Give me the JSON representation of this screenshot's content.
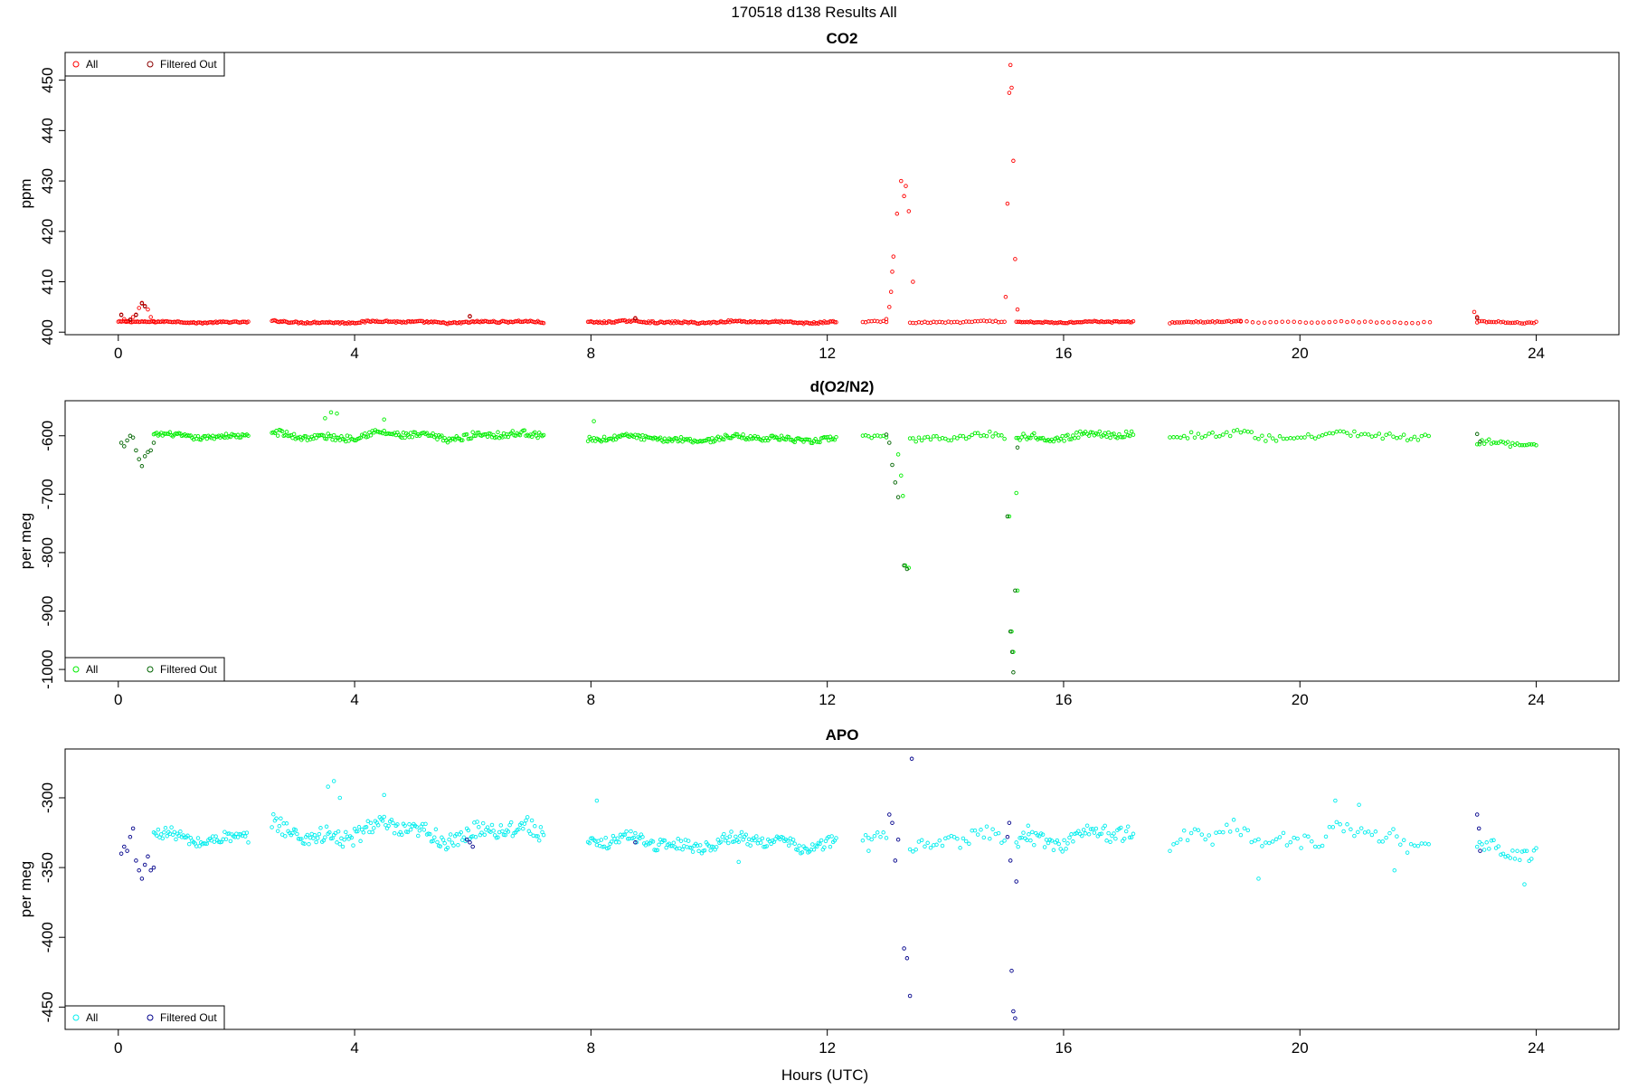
{
  "figure": {
    "title": "170518   d138   Results All",
    "xlabel": "Hours (UTC)"
  },
  "chart_data": [
    {
      "type": "scatter",
      "title": "CO2",
      "ylabel": "ppm",
      "xlim": [
        -0.9,
        25.4
      ],
      "ylim": [
        399.5,
        455.5
      ],
      "xticks": [
        0,
        4,
        8,
        12,
        16,
        20,
        24
      ],
      "yticks": [
        400,
        410,
        420,
        430,
        440,
        450
      ],
      "legend_position": "top-left",
      "series": [
        {
          "name": "All",
          "color": "#ff0000",
          "segments": [
            {
              "x0": 0.0,
              "x1": 2.2,
              "y": 402,
              "amp": 0.3,
              "step": 0.025
            },
            {
              "x0": 2.6,
              "x1": 7.2,
              "y": 402,
              "amp": 0.4,
              "step": 0.025
            },
            {
              "x0": 7.95,
              "x1": 12.15,
              "y": 402,
              "amp": 0.4,
              "step": 0.025
            },
            {
              "x0": 12.6,
              "x1": 13.0,
              "y": 402,
              "amp": 0.3,
              "step": 0.05
            },
            {
              "x0": 13.4,
              "x1": 15.0,
              "y": 402,
              "amp": 0.3,
              "step": 0.05
            },
            {
              "x0": 15.2,
              "x1": 17.2,
              "y": 402,
              "amp": 0.3,
              "step": 0.03
            },
            {
              "x0": 17.8,
              "x1": 19.0,
              "y": 402,
              "amp": 0.3,
              "step": 0.04
            },
            {
              "x0": 19.0,
              "x1": 22.2,
              "y": 402,
              "amp": 0.3,
              "step": 0.1
            },
            {
              "x0": 23.0,
              "x1": 24.0,
              "y": 402,
              "amp": 0.3,
              "step": 0.04
            }
          ],
          "points": [
            [
              0.05,
              403.5
            ],
            [
              0.1,
              402.6
            ],
            [
              0.15,
              402.2
            ],
            [
              0.2,
              402.4
            ],
            [
              0.25,
              403.0
            ],
            [
              0.3,
              403.5
            ],
            [
              0.35,
              404.8
            ],
            [
              0.4,
              405.8
            ],
            [
              0.45,
              405.2
            ],
            [
              0.5,
              404.5
            ],
            [
              0.55,
              403.0
            ],
            [
              0.6,
              402.2
            ],
            [
              5.95,
              403.2
            ],
            [
              8.75,
              402.8
            ],
            [
              13.0,
              402.6
            ],
            [
              13.05,
              405.0
            ],
            [
              13.08,
              408.0
            ],
            [
              13.1,
              412.0
            ],
            [
              13.12,
              415.0
            ],
            [
              13.18,
              423.5
            ],
            [
              13.25,
              430.0
            ],
            [
              13.3,
              427.0
            ],
            [
              13.33,
              429.0
            ],
            [
              13.38,
              424.0
            ],
            [
              13.45,
              410.0
            ],
            [
              15.02,
              407.0
            ],
            [
              15.05,
              425.5
            ],
            [
              15.08,
              447.5
            ],
            [
              15.1,
              453.0
            ],
            [
              15.12,
              448.5
            ],
            [
              15.15,
              434.0
            ],
            [
              15.18,
              414.5
            ],
            [
              15.22,
              404.5
            ],
            [
              22.95,
              404.0
            ],
            [
              23.0,
              403.0
            ]
          ]
        },
        {
          "name": "Filtered Out",
          "color": "#8b0000",
          "points": [
            [
              0.05,
              403.4
            ],
            [
              0.2,
              402.5
            ],
            [
              0.3,
              403.4
            ],
            [
              0.4,
              405.7
            ],
            [
              0.45,
              405.1
            ],
            [
              5.95,
              403.1
            ],
            [
              8.75,
              402.7
            ],
            [
              23.0,
              402.8
            ]
          ]
        }
      ]
    },
    {
      "type": "scatter",
      "title": "d(O2/N2)",
      "ylabel": "per meg",
      "xlim": [
        -0.9,
        25.4
      ],
      "ylim": [
        -1020,
        -540
      ],
      "xticks": [
        0,
        4,
        8,
        12,
        16,
        20,
        24
      ],
      "yticks": [
        -600,
        -700,
        -800,
        -900,
        -1000
      ],
      "legend_position": "bottom-left",
      "series": [
        {
          "name": "All",
          "color": "#00ee00",
          "segments": [
            {
              "x0": 0.6,
              "x1": 2.2,
              "y": -600,
              "amp": 8,
              "step": 0.025
            },
            {
              "x0": 2.6,
              "x1": 7.2,
              "y": -600,
              "amp": 12,
              "step": 0.025
            },
            {
              "x0": 7.95,
              "x1": 12.15,
              "y": -605,
              "amp": 9,
              "step": 0.025
            },
            {
              "x0": 12.6,
              "x1": 13.0,
              "y": -603,
              "amp": 6,
              "step": 0.05
            },
            {
              "x0": 13.4,
              "x1": 15.0,
              "y": -602,
              "amp": 10,
              "step": 0.05
            },
            {
              "x0": 15.2,
              "x1": 17.2,
              "y": -600,
              "amp": 12,
              "step": 0.03
            },
            {
              "x0": 17.8,
              "x1": 22.2,
              "y": -600,
              "amp": 12,
              "step": 0.06
            },
            {
              "x0": 23.0,
              "x1": 24.0,
              "y": -612,
              "amp": 10,
              "step": 0.04
            }
          ],
          "points": [
            [
              3.5,
              -570
            ],
            [
              3.6,
              -560
            ],
            [
              3.7,
              -562
            ],
            [
              4.5,
              -572
            ],
            [
              8.05,
              -575
            ],
            [
              13.2,
              -632
            ],
            [
              13.25,
              -668
            ],
            [
              13.28,
              -703
            ],
            [
              13.32,
              -822
            ],
            [
              13.38,
              -826
            ],
            [
              15.08,
              -738
            ],
            [
              15.12,
              -935
            ],
            [
              15.15,
              -970
            ],
            [
              15.2,
              -698
            ],
            [
              15.22,
              -865
            ]
          ]
        },
        {
          "name": "Filtered Out",
          "color": "#006400",
          "points": [
            [
              0.05,
              -612
            ],
            [
              0.1,
              -618
            ],
            [
              0.15,
              -608
            ],
            [
              0.2,
              -600
            ],
            [
              0.25,
              -603
            ],
            [
              0.3,
              -625
            ],
            [
              0.35,
              -640
            ],
            [
              0.4,
              -652
            ],
            [
              0.45,
              -635
            ],
            [
              0.5,
              -628
            ],
            [
              0.55,
              -625
            ],
            [
              0.6,
              -612
            ],
            [
              13.0,
              -598
            ],
            [
              13.05,
              -612
            ],
            [
              13.1,
              -650
            ],
            [
              13.15,
              -680
            ],
            [
              13.2,
              -705
            ],
            [
              13.3,
              -822
            ],
            [
              13.35,
              -828
            ],
            [
              15.05,
              -738
            ],
            [
              15.1,
              -935
            ],
            [
              15.13,
              -970
            ],
            [
              15.15,
              -1005
            ],
            [
              15.18,
              -865
            ],
            [
              15.22,
              -620
            ],
            [
              23.0,
              -597
            ],
            [
              23.05,
              -610
            ]
          ]
        }
      ]
    },
    {
      "type": "scatter",
      "title": "APO",
      "ylabel": "per meg",
      "xlim": [
        -0.9,
        25.4
      ],
      "ylim": [
        -466,
        -265
      ],
      "xticks": [
        0,
        4,
        8,
        12,
        16,
        20,
        24
      ],
      "yticks": [
        -300,
        -350,
        -400,
        -450
      ],
      "legend_position": "bottom-left",
      "series": [
        {
          "name": "All",
          "color": "#00eeee",
          "segments": [
            {
              "x0": 0.6,
              "x1": 2.2,
              "y": -328,
              "amp": 9,
              "step": 0.025
            },
            {
              "x0": 2.6,
              "x1": 7.2,
              "y": -325,
              "amp": 14,
              "step": 0.025
            },
            {
              "x0": 7.95,
              "x1": 12.15,
              "y": -332,
              "amp": 9,
              "step": 0.025
            },
            {
              "x0": 12.6,
              "x1": 13.0,
              "y": -330,
              "amp": 6,
              "step": 0.05
            },
            {
              "x0": 13.4,
              "x1": 15.0,
              "y": -330,
              "amp": 10,
              "step": 0.05
            },
            {
              "x0": 15.2,
              "x1": 17.2,
              "y": -328,
              "amp": 12,
              "step": 0.03
            },
            {
              "x0": 17.8,
              "x1": 22.2,
              "y": -328,
              "amp": 14,
              "step": 0.06
            },
            {
              "x0": 23.0,
              "x1": 24.0,
              "y": -337,
              "amp": 10,
              "step": 0.04
            }
          ],
          "points": [
            [
              3.55,
              -292
            ],
            [
              3.65,
              -288
            ],
            [
              3.75,
              -300
            ],
            [
              4.5,
              -298
            ],
            [
              8.1,
              -302
            ],
            [
              10.5,
              -346
            ],
            [
              12.7,
              -338
            ],
            [
              15.4,
              -320
            ],
            [
              19.3,
              -358
            ],
            [
              20.6,
              -302
            ],
            [
              21.0,
              -305
            ],
            [
              21.6,
              -352
            ],
            [
              23.8,
              -362
            ]
          ]
        },
        {
          "name": "Filtered Out",
          "color": "#00008b",
          "points": [
            [
              0.05,
              -340
            ],
            [
              0.1,
              -335
            ],
            [
              0.15,
              -338
            ],
            [
              0.2,
              -328
            ],
            [
              0.25,
              -322
            ],
            [
              0.3,
              -345
            ],
            [
              0.35,
              -352
            ],
            [
              0.4,
              -358
            ],
            [
              0.45,
              -348
            ],
            [
              0.5,
              -342
            ],
            [
              0.55,
              -352
            ],
            [
              0.6,
              -350
            ],
            [
              5.9,
              -330
            ],
            [
              5.95,
              -332
            ],
            [
              6.0,
              -335
            ],
            [
              8.75,
              -332
            ],
            [
              13.05,
              -312
            ],
            [
              13.1,
              -318
            ],
            [
              13.15,
              -345
            ],
            [
              13.2,
              -330
            ],
            [
              13.3,
              -408
            ],
            [
              13.35,
              -415
            ],
            [
              13.4,
              -442
            ],
            [
              13.43,
              -272
            ],
            [
              15.05,
              -328
            ],
            [
              15.08,
              -318
            ],
            [
              15.1,
              -345
            ],
            [
              15.12,
              -424
            ],
            [
              15.15,
              -453
            ],
            [
              15.18,
              -458
            ],
            [
              15.2,
              -360
            ],
            [
              23.0,
              -312
            ],
            [
              23.03,
              -322
            ],
            [
              23.05,
              -338
            ]
          ]
        }
      ]
    }
  ]
}
